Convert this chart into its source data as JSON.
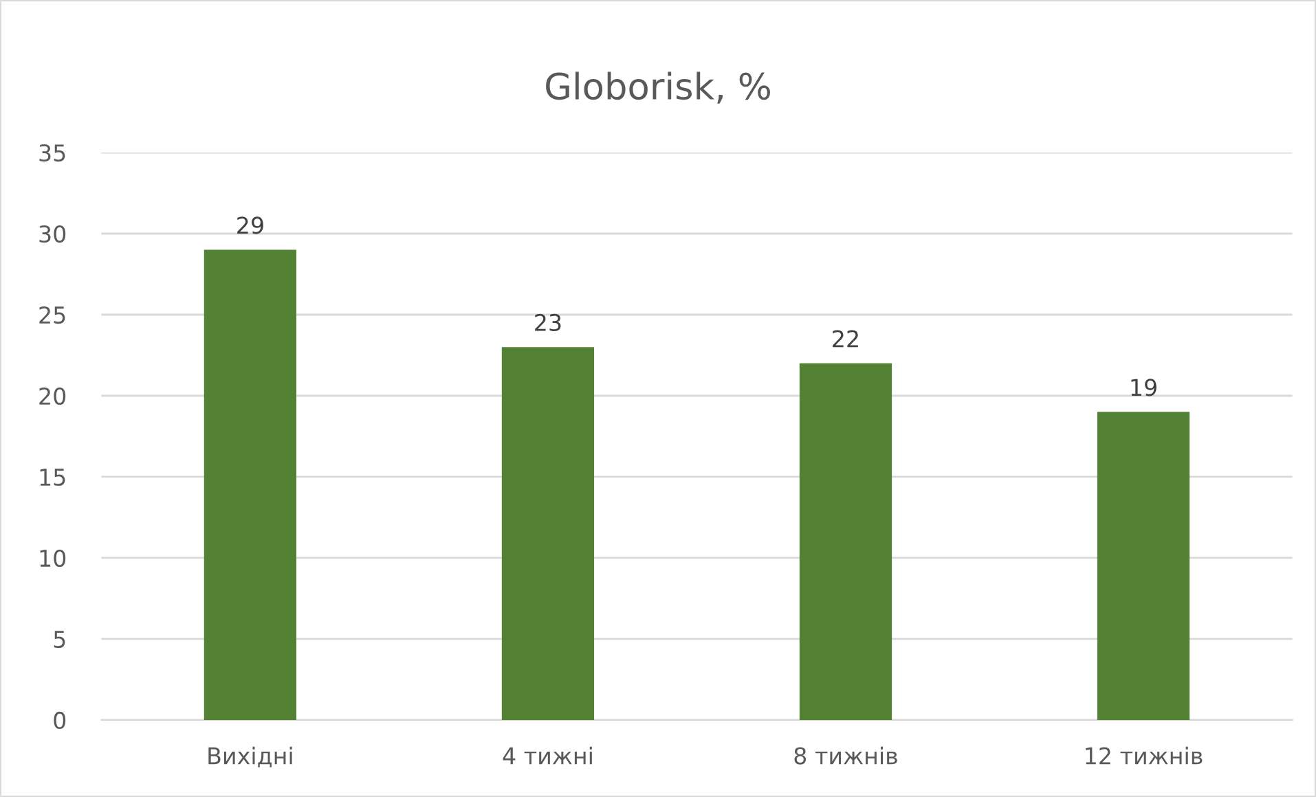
{
  "chart_data": {
    "type": "bar",
    "title": "Globorisk, %",
    "categories": [
      "Вихідні",
      "4 тижні",
      "8 тижнів",
      "12 тижнів"
    ],
    "values": [
      29,
      23,
      22,
      19
    ],
    "color": "#548235",
    "ylim": [
      0,
      35
    ],
    "yticks": [
      0,
      5,
      10,
      15,
      20,
      25,
      30,
      35
    ],
    "grid": "y",
    "data_labels": true,
    "legend": false
  }
}
